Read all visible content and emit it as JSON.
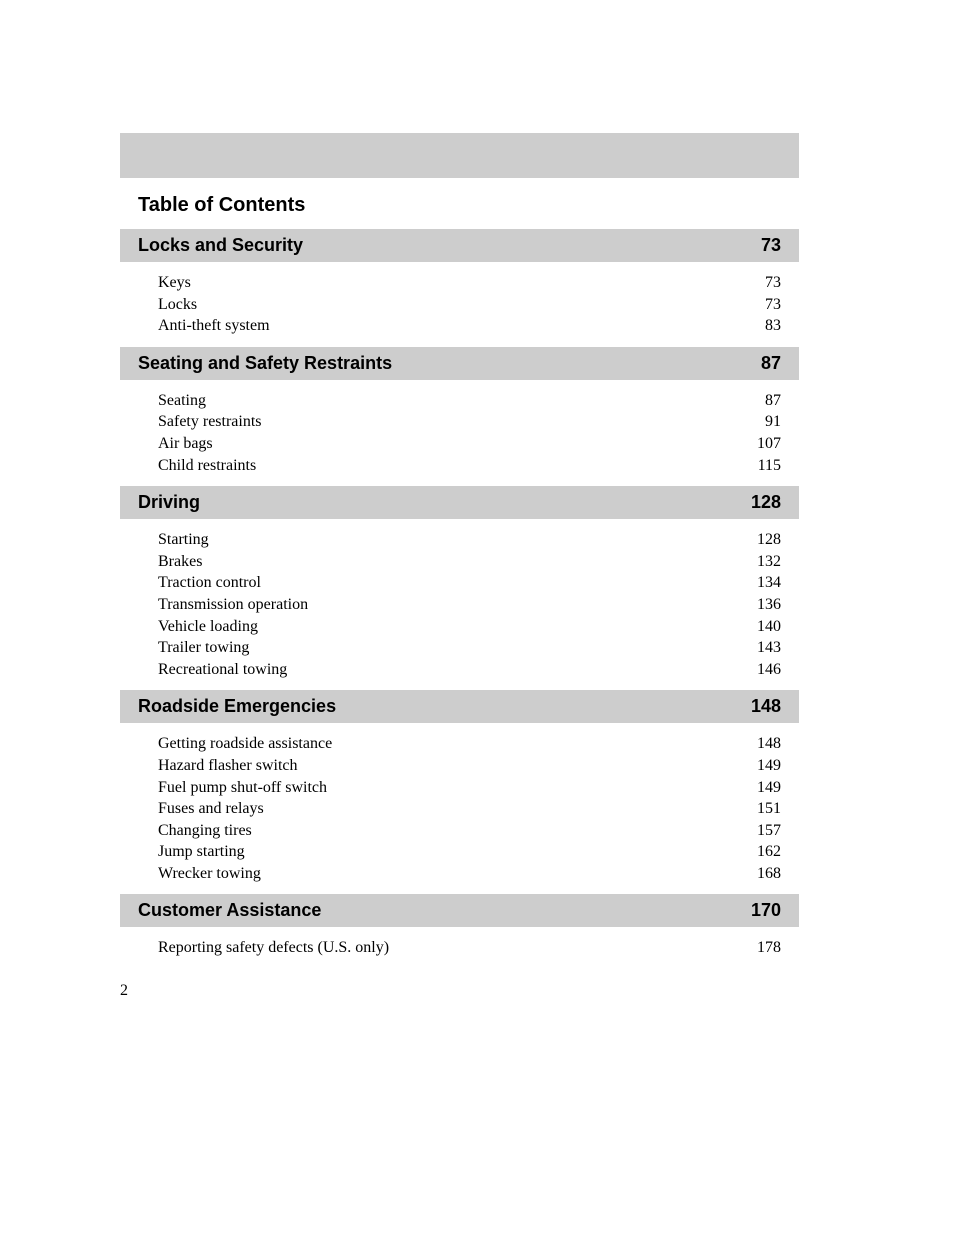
{
  "title": "Table of Contents",
  "pageNumber": "2",
  "sections": [
    {
      "title": "Locks and Security",
      "page": "73",
      "items": [
        {
          "label": "Keys",
          "page": "73"
        },
        {
          "label": "Locks",
          "page": "73"
        },
        {
          "label": "Anti-theft system",
          "page": "83"
        }
      ]
    },
    {
      "title": "Seating and Safety Restraints",
      "page": "87",
      "items": [
        {
          "label": "Seating",
          "page": "87"
        },
        {
          "label": "Safety restraints",
          "page": "91"
        },
        {
          "label": "Air bags",
          "page": "107"
        },
        {
          "label": "Child restraints",
          "page": "115"
        }
      ]
    },
    {
      "title": "Driving",
      "page": "128",
      "items": [
        {
          "label": "Starting",
          "page": "128"
        },
        {
          "label": "Brakes",
          "page": "132"
        },
        {
          "label": "Traction control",
          "page": "134"
        },
        {
          "label": "Transmission operation",
          "page": "136"
        },
        {
          "label": "Vehicle loading",
          "page": "140"
        },
        {
          "label": "Trailer towing",
          "page": "143"
        },
        {
          "label": "Recreational towing",
          "page": "146"
        }
      ]
    },
    {
      "title": "Roadside Emergencies",
      "page": "148",
      "items": [
        {
          "label": "Getting roadside assistance",
          "page": "148"
        },
        {
          "label": "Hazard flasher switch",
          "page": "149"
        },
        {
          "label": "Fuel pump shut-off switch",
          "page": "149"
        },
        {
          "label": "Fuses and relays",
          "page": "151"
        },
        {
          "label": "Changing tires",
          "page": "157"
        },
        {
          "label": "Jump starting",
          "page": "162"
        },
        {
          "label": "Wrecker towing",
          "page": "168"
        }
      ]
    },
    {
      "title": "Customer Assistance",
      "page": "170",
      "items": [
        {
          "label": "Reporting safety defects (U.S. only)",
          "page": "178"
        }
      ]
    }
  ],
  "colors": {
    "headerBg": "#cdcdcd",
    "background": "#ffffff",
    "text": "#000000"
  }
}
